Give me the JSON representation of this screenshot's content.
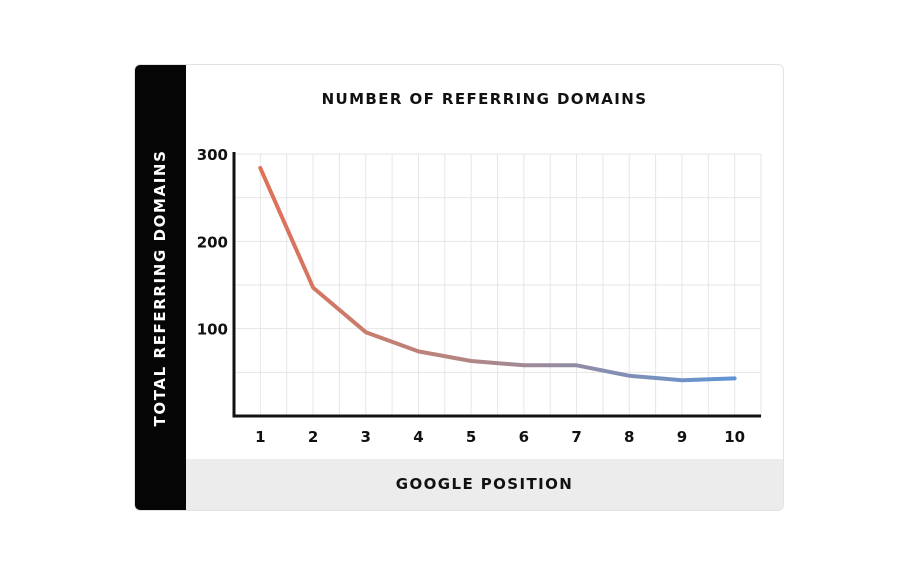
{
  "chart_data": {
    "type": "line",
    "title": "NUMBER OF REFERRING DOMAINS",
    "xlabel": "GOOGLE POSITION",
    "ylabel": "TOTAL REFERRING DOMAINS",
    "x": [
      1,
      2,
      3,
      4,
      5,
      6,
      7,
      8,
      9,
      10
    ],
    "series": [
      {
        "values": [
          284,
          147,
          96,
          74,
          63,
          58,
          58,
          46,
          41,
          43
        ]
      }
    ],
    "xlim": [
      0.5,
      10.5
    ],
    "ylim": [
      0,
      300
    ],
    "yticks": [
      100,
      200,
      300
    ],
    "grid": true,
    "legend": "none",
    "colors": {
      "line_start": "#e07058",
      "line_end": "#5f95d6",
      "axis": "#111111",
      "grid": "#e6e6e6"
    }
  }
}
